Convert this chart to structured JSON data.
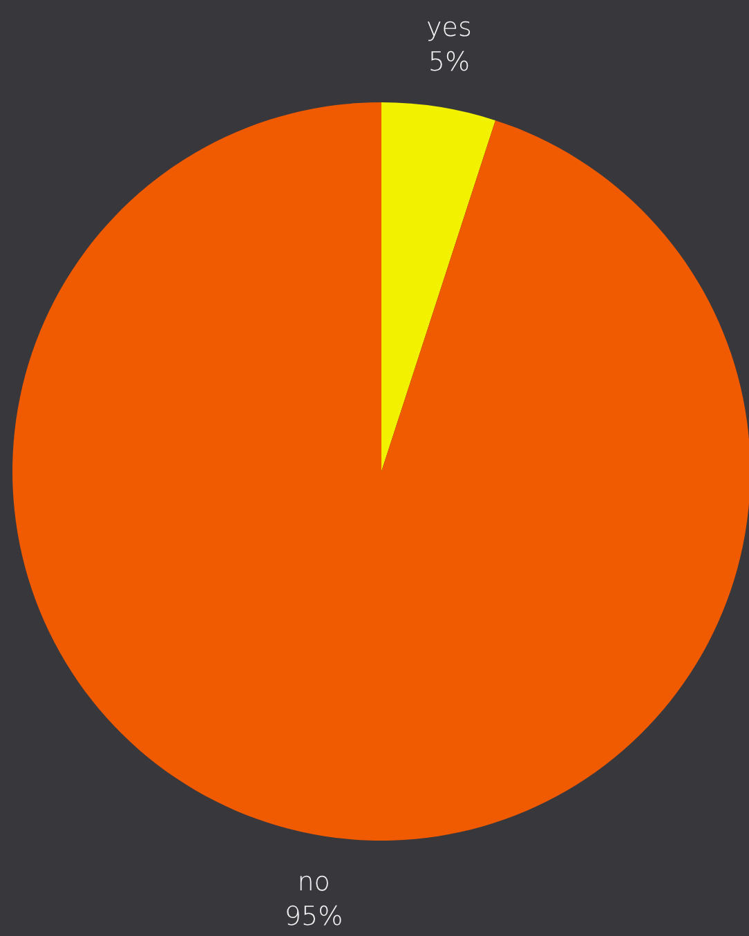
{
  "chart_data": {
    "type": "pie",
    "categories": [
      "yes",
      "no"
    ],
    "values": [
      5,
      95
    ],
    "value_labels": [
      "5%",
      "95%"
    ],
    "colors": [
      "#f2f200",
      "#f05a00"
    ],
    "legend": false
  }
}
